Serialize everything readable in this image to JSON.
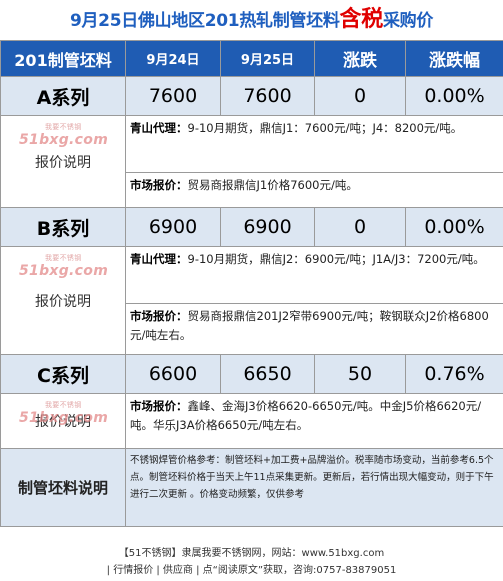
{
  "title": {
    "part1": "9月25日佛山地区201热轧制管坯料",
    "highlight": "含税",
    "part2": "采购价"
  },
  "header": {
    "product": "201制管坯料",
    "date1": "9月24日",
    "date2": "9月25日",
    "change": "涨跌",
    "change_pct": "涨跌幅"
  },
  "rows": [
    {
      "series": "A系列",
      "prev": "7600",
      "curr": "7600",
      "change": "0",
      "pct": "0.00%",
      "note_label": "报价说明",
      "notes": [
        {
          "head": "青山代理：",
          "body": "9-10月期货，鼎信J1：7600元/吨；J4：8200元/吨。"
        },
        {
          "head": "市场报价：",
          "body": "贸易商报鼎信J1价格7600元/吨。"
        }
      ]
    },
    {
      "series": "B系列",
      "prev": "6900",
      "curr": "6900",
      "change": "0",
      "pct": "0.00%",
      "note_label": "报价说明",
      "notes": [
        {
          "head": "青山代理：",
          "body": "9-10月期货，鼎信J2：6900元/吨；J1A/J3：7200元/吨。"
        },
        {
          "head": "市场报价：",
          "body": "贸易商报鼎信201J2窄带6900元/吨；鞍钢联众J2价格6800元/吨左右。"
        }
      ]
    },
    {
      "series": "C系列",
      "prev": "6600",
      "curr": "6650",
      "change": "50",
      "pct": "0.76%",
      "note_label": "报价说明",
      "notes": [
        {
          "head": "市场报价：",
          "body": "鑫峰、金海J3价格6620-6650元/吨。中金J5价格6620元/吨。华乐J3A价格6650元/吨左右。"
        }
      ]
    }
  ],
  "watermark": {
    "top": "我要不锈钢",
    "text": "51bxg.com"
  },
  "explanation": {
    "label": "制管坯料说明",
    "text": "不锈钢焊管价格参考：制管坯料+加工费+品牌溢价。税率随市场变动，当前参考6.5个点。制管坯料价格于当天上午11点采集更新。更新后，若行情出现大幅变动，则于下午进行二次更新 。价格变动频繁，仅供参考"
  },
  "footer": {
    "line1": "【51不锈钢】隶属我要不锈钢网，网站：www.51bxg.com",
    "line2": "| 行情报价 | 供应商 | 点“阅读原文”获取，咨询:0757-83879051"
  },
  "colors": {
    "title": "#1f5fbf",
    "highlight": "#e00000",
    "header_bg": "#1f5cb3",
    "row_bg": "#dce6f2",
    "watermark": "#e38a8a"
  }
}
